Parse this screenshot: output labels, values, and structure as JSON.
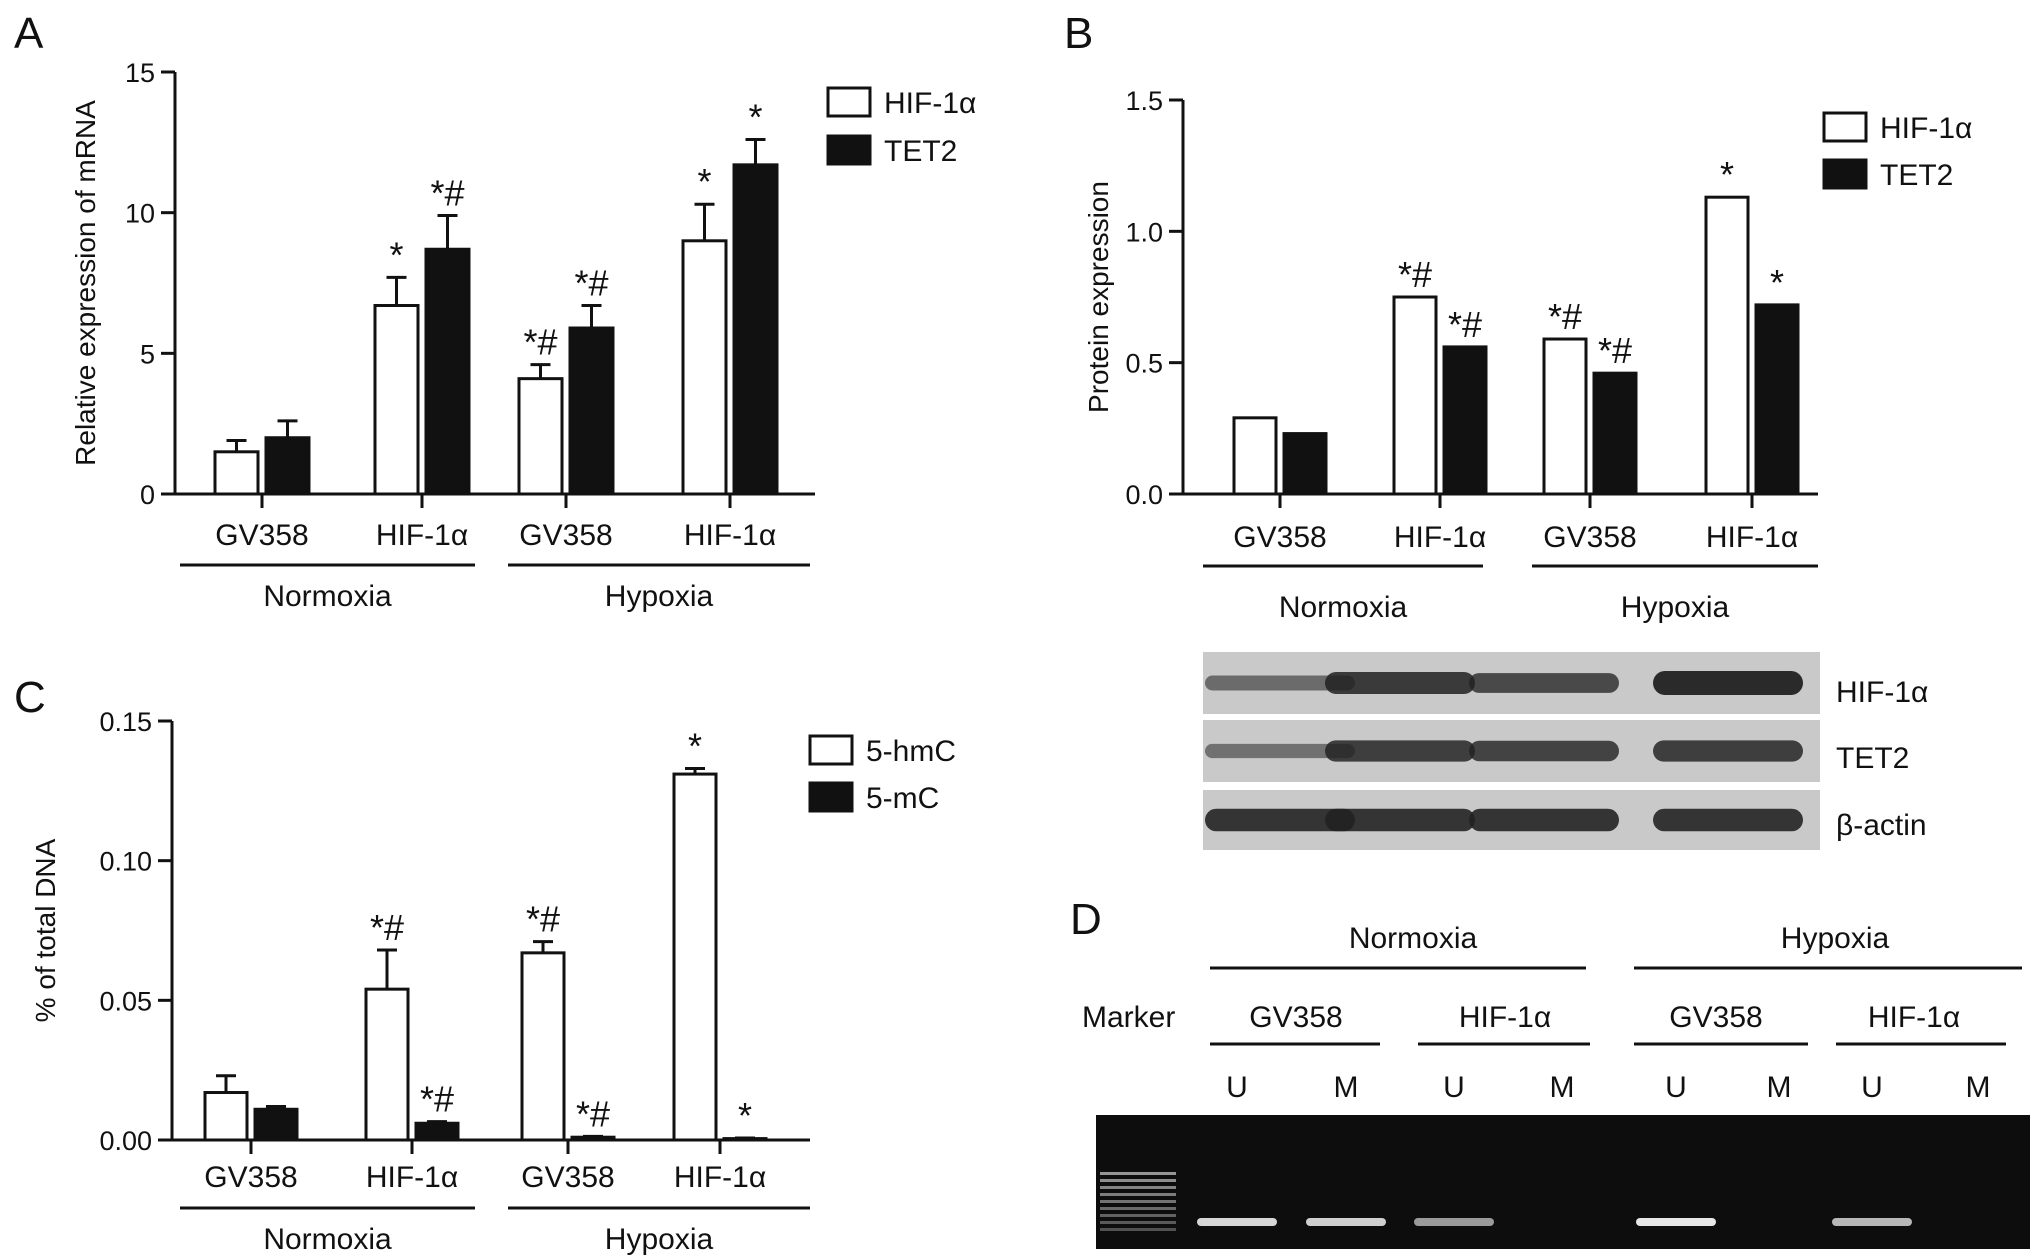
{
  "figure": {
    "panels": {
      "A": "A",
      "B": "B",
      "C": "C",
      "D": "D"
    }
  },
  "chart_data": [
    {
      "panel": "A",
      "type": "bar",
      "ylabel": "Relative expression of mRNA",
      "ylim": [
        0,
        15
      ],
      "yticks": [
        "0",
        "5",
        "10",
        "15"
      ],
      "categories": [
        "GV358",
        "HIF-1α",
        "GV358",
        "HIF-1α"
      ],
      "groups": [
        "Normoxia",
        "Hypoxia"
      ],
      "series": [
        {
          "name": "HIF-1α",
          "fill": "white",
          "values": [
            1.5,
            6.7,
            4.1,
            9.0
          ],
          "errors": [
            0.4,
            1.0,
            0.5,
            1.3
          ],
          "labels": [
            "",
            "*",
            "*#",
            "*"
          ]
        },
        {
          "name": "TET2",
          "fill": "black",
          "values": [
            2.0,
            8.7,
            5.9,
            11.7
          ],
          "errors": [
            0.6,
            1.2,
            0.8,
            0.9
          ],
          "labels": [
            "",
            "*#",
            "*#",
            "*"
          ]
        }
      ],
      "legend": "top-right"
    },
    {
      "panel": "B",
      "type": "bar",
      "ylabel": "Protein expression",
      "ylim": [
        0,
        1.5
      ],
      "yticks": [
        "0.0",
        "0.5",
        "1.0",
        "1.5"
      ],
      "categories": [
        "GV358",
        "HIF-1α",
        "GV358",
        "HIF-1α"
      ],
      "groups": [
        "Normoxia",
        "Hypoxia"
      ],
      "series": [
        {
          "name": "HIF-1α",
          "fill": "white",
          "values": [
            0.29,
            0.75,
            0.59,
            1.13
          ],
          "errors": [
            0.0,
            0.0,
            0.0,
            0.0
          ],
          "labels": [
            "",
            "*#",
            "*#",
            "*"
          ]
        },
        {
          "name": "TET2",
          "fill": "black",
          "values": [
            0.23,
            0.56,
            0.46,
            0.72
          ],
          "errors": [
            0.0,
            0.0,
            0.0,
            0.0
          ],
          "labels": [
            "",
            "*#",
            "*#",
            "*"
          ]
        }
      ],
      "legend": "top-right"
    },
    {
      "panel": "C",
      "type": "bar",
      "ylabel": "% of total DNA",
      "ylim": [
        0,
        0.15
      ],
      "yticks": [
        "0.00",
        "0.05",
        "0.10",
        "0.15"
      ],
      "categories": [
        "GV358",
        "HIF-1α",
        "GV358",
        "HIF-1α"
      ],
      "groups": [
        "Normoxia",
        "Hypoxia"
      ],
      "series": [
        {
          "name": "5-hmC",
          "fill": "white",
          "values": [
            0.017,
            0.054,
            0.067,
            0.131
          ],
          "errors": [
            0.006,
            0.014,
            0.004,
            0.002
          ],
          "labels": [
            "",
            "*#",
            "*#",
            "*"
          ]
        },
        {
          "name": "5-mC",
          "fill": "black",
          "values": [
            0.011,
            0.006,
            0.001,
            0.0005
          ],
          "errors": [
            0.001,
            0.0006,
            0.0003,
            0.0002
          ],
          "labels": [
            "",
            "*#",
            "*#",
            "*"
          ]
        }
      ],
      "legend": "top-right"
    }
  ],
  "blot": {
    "labels": [
      "HIF-1α",
      "TET2",
      "β-actin"
    ],
    "intensities": [
      [
        0.35,
        0.85,
        0.7,
        1.0
      ],
      [
        0.3,
        0.8,
        0.75,
        0.8
      ],
      [
        0.9,
        0.9,
        0.9,
        0.9
      ]
    ]
  },
  "gel": {
    "marker_label": "Marker",
    "groups": [
      "Normoxia",
      "Hypoxia"
    ],
    "subgroups": [
      "GV358",
      "HIF-1α",
      "GV358",
      "HIF-1α"
    ],
    "lanes": [
      "U",
      "M",
      "U",
      "M",
      "U",
      "M",
      "U",
      "M"
    ],
    "band_intensity": [
      0.9,
      0.85,
      0.5,
      0.0,
      1.0,
      0.0,
      0.7,
      0.0
    ]
  }
}
